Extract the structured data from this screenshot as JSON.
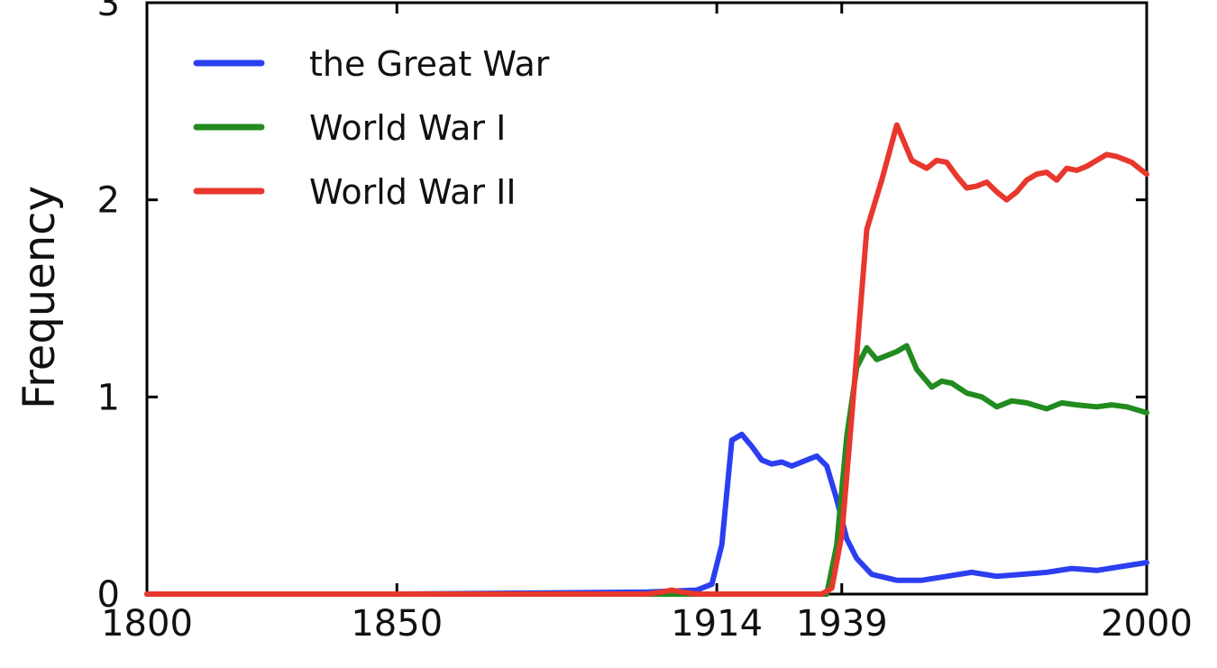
{
  "chart_data": {
    "type": "line",
    "title": "",
    "xlabel": "",
    "ylabel": "Frequency",
    "xlim": [
      1800,
      2000
    ],
    "ylim": [
      0,
      3
    ],
    "x_ticks": [
      "1800",
      "1850",
      "1914",
      "1939",
      "2000"
    ],
    "y_ticks": [
      "0",
      "1",
      "2",
      "3"
    ],
    "legend_position": "top-left",
    "grid": false,
    "series": [
      {
        "name": "the Great War",
        "color": "#2b3ff0",
        "points": [
          [
            1800,
            0
          ],
          [
            1850,
            0
          ],
          [
            1900,
            0.01
          ],
          [
            1910,
            0.02
          ],
          [
            1913,
            0.05
          ],
          [
            1915,
            0.25
          ],
          [
            1917,
            0.78
          ],
          [
            1919,
            0.81
          ],
          [
            1921,
            0.75
          ],
          [
            1923,
            0.68
          ],
          [
            1925,
            0.66
          ],
          [
            1927,
            0.67
          ],
          [
            1929,
            0.65
          ],
          [
            1931,
            0.67
          ],
          [
            1934,
            0.7
          ],
          [
            1936,
            0.65
          ],
          [
            1938,
            0.48
          ],
          [
            1940,
            0.28
          ],
          [
            1942,
            0.18
          ],
          [
            1945,
            0.1
          ],
          [
            1950,
            0.07
          ],
          [
            1955,
            0.07
          ],
          [
            1960,
            0.09
          ],
          [
            1965,
            0.11
          ],
          [
            1970,
            0.09
          ],
          [
            1975,
            0.1
          ],
          [
            1980,
            0.11
          ],
          [
            1985,
            0.13
          ],
          [
            1990,
            0.12
          ],
          [
            1995,
            0.14
          ],
          [
            2000,
            0.16
          ]
        ]
      },
      {
        "name": "World War I",
        "color": "#228b1f",
        "points": [
          [
            1800,
            0
          ],
          [
            1900,
            0
          ],
          [
            1936,
            0
          ],
          [
            1938,
            0.25
          ],
          [
            1940,
            0.8
          ],
          [
            1942,
            1.15
          ],
          [
            1944,
            1.25
          ],
          [
            1946,
            1.19
          ],
          [
            1948,
            1.21
          ],
          [
            1950,
            1.23
          ],
          [
            1952,
            1.26
          ],
          [
            1954,
            1.14
          ],
          [
            1957,
            1.05
          ],
          [
            1959,
            1.08
          ],
          [
            1961,
            1.07
          ],
          [
            1964,
            1.02
          ],
          [
            1967,
            1.0
          ],
          [
            1970,
            0.95
          ],
          [
            1973,
            0.98
          ],
          [
            1976,
            0.97
          ],
          [
            1980,
            0.94
          ],
          [
            1983,
            0.97
          ],
          [
            1986,
            0.96
          ],
          [
            1990,
            0.95
          ],
          [
            1993,
            0.96
          ],
          [
            1996,
            0.95
          ],
          [
            2000,
            0.92
          ]
        ]
      },
      {
        "name": "World War II",
        "color": "#e8372d",
        "points": [
          [
            1800,
            0
          ],
          [
            1900,
            0
          ],
          [
            1903,
            0.01
          ],
          [
            1905,
            0.02
          ],
          [
            1907,
            0.01
          ],
          [
            1910,
            0
          ],
          [
            1935,
            0
          ],
          [
            1937,
            0.03
          ],
          [
            1939,
            0.3
          ],
          [
            1941,
            0.9
          ],
          [
            1944,
            1.85
          ],
          [
            1947,
            2.1
          ],
          [
            1950,
            2.38
          ],
          [
            1953,
            2.2
          ],
          [
            1956,
            2.16
          ],
          [
            1958,
            2.2
          ],
          [
            1960,
            2.19
          ],
          [
            1962,
            2.12
          ],
          [
            1964,
            2.06
          ],
          [
            1966,
            2.07
          ],
          [
            1968,
            2.09
          ],
          [
            1970,
            2.04
          ],
          [
            1972,
            2.0
          ],
          [
            1974,
            2.04
          ],
          [
            1976,
            2.1
          ],
          [
            1978,
            2.13
          ],
          [
            1980,
            2.14
          ],
          [
            1982,
            2.1
          ],
          [
            1984,
            2.16
          ],
          [
            1986,
            2.15
          ],
          [
            1988,
            2.17
          ],
          [
            1990,
            2.2
          ],
          [
            1992,
            2.23
          ],
          [
            1994,
            2.22
          ],
          [
            1997,
            2.19
          ],
          [
            2000,
            2.13
          ]
        ]
      }
    ]
  }
}
